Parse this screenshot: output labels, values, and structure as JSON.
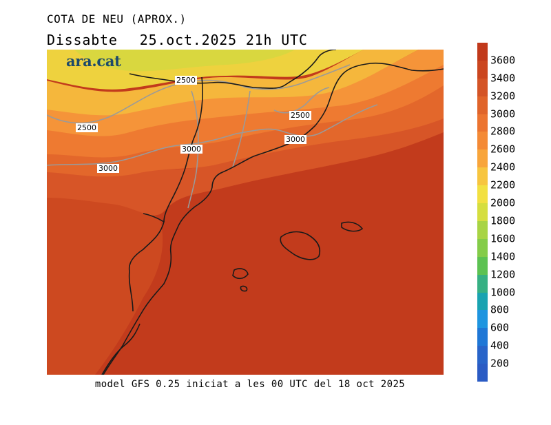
{
  "header": {
    "title": "COTA DE NEU (APROX.)",
    "day": "Dissabte",
    "datetime": "25.oct.2025 21h UTC"
  },
  "logo": {
    "text": "ara.cat"
  },
  "footer": {
    "model_text": "model GFS 0.25 iniciat a les 00 UTC del 18 oct 2025"
  },
  "colorbar": {
    "ticks": [
      "3600",
      "3400",
      "3200",
      "3000",
      "2800",
      "2600",
      "2400",
      "2200",
      "2000",
      "1800",
      "1600",
      "1400",
      "1200",
      "1000",
      "800",
      "600",
      "400",
      "200"
    ],
    "colors_top_to_bottom": [
      "#c1391b",
      "#cb461f",
      "#d45426",
      "#e0642a",
      "#ec7430",
      "#f48a36",
      "#f8a53b",
      "#f7c53f",
      "#f2e041",
      "#d5de3f",
      "#a8d444",
      "#84cc49",
      "#5cc252",
      "#36b083",
      "#19a3b1",
      "#1e95e0",
      "#1f77d6",
      "#2864c9",
      "#2a5bc4"
    ]
  },
  "contour_labels": [
    {
      "text": "2500"
    },
    {
      "text": "2500"
    },
    {
      "text": "2500"
    },
    {
      "text": "3000"
    },
    {
      "text": "3000"
    },
    {
      "text": "3000"
    }
  ],
  "map": {
    "fill_colors": {
      "base": "#c23b1c",
      "band_3400": "#cd4920",
      "band_3200": "#d75527",
      "band_3000": "#e3672b",
      "band_2800": "#ee7a31",
      "band_2600": "#f59439",
      "band_2400": "#f5b73c",
      "band_2200": "#eed23e",
      "band_2000": "#d9d73f"
    }
  }
}
